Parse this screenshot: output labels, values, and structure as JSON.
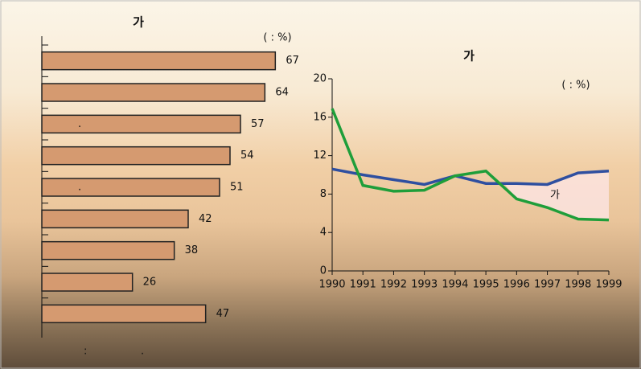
{
  "chart_data": [
    {
      "type": "bar",
      "orientation": "horizontal",
      "title": "가",
      "unit_note": "(     :  %)",
      "categories": [
        null,
        null,
        ".",
        null,
        ".",
        null,
        null,
        null,
        null
      ],
      "values": [
        67,
        64,
        57,
        54,
        51,
        42,
        38,
        26,
        47
      ],
      "color": "#d59a70",
      "xlim": [
        0,
        75
      ],
      "source": [
        ":",
        "."
      ]
    },
    {
      "type": "line",
      "title": "가",
      "unit_note": "(     :  %)",
      "categories": [
        "1990",
        "1991",
        "1992",
        "1993",
        "1994",
        "1995",
        "1996",
        "1997",
        "1998",
        "1999"
      ],
      "series": [
        {
          "name": null,
          "color": "#2f4fa0",
          "values": [
            10.6,
            10.0,
            9.5,
            9.0,
            9.9,
            9.1,
            9.1,
            9.0,
            10.2,
            10.4
          ]
        },
        {
          "name": null,
          "color": "#1f9e3a",
          "values": [
            16.9,
            8.9,
            8.3,
            8.4,
            9.9,
            10.4,
            7.5,
            6.6,
            5.4,
            5.3
          ]
        }
      ],
      "annotation": "가",
      "ylim": [
        0,
        20
      ],
      "yticks": [
        0,
        4,
        8,
        12,
        16,
        20
      ]
    }
  ]
}
